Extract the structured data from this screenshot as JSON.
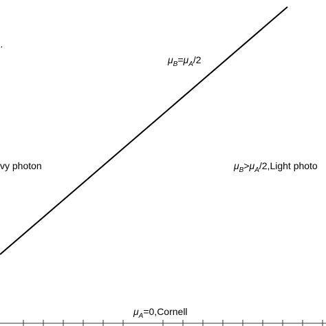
{
  "diagram": {
    "boundary_label": {
      "mu_b": "μ",
      "sub_b": "B",
      "eq": "=",
      "mu_a": "μ",
      "sub_a": "A",
      "tail": "/2"
    },
    "right_region_label": {
      "mu_b": "μ",
      "sub_b": "B",
      "gt": ">",
      "mu_a": "μ",
      "sub_a": "A",
      "tail": "/2,Light photo"
    },
    "left_region_label": {
      "text": "vy photon"
    },
    "bottom_label": {
      "mu_a": "μ",
      "sub_a": "A",
      "tail": "=0,Cornell"
    },
    "left_edge_fragment": {
      "text": "·"
    }
  },
  "colors": {
    "line": "#000000",
    "text": "#000000",
    "axis": "#333333",
    "background": "#ffffff"
  }
}
